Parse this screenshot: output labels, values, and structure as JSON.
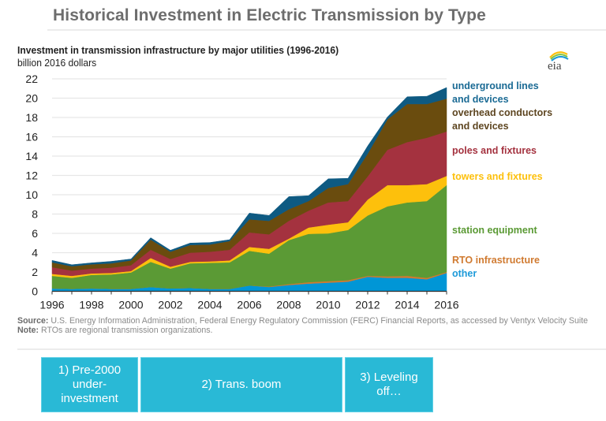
{
  "page": {
    "title": "Historical Investment in Electric Transmission by Type"
  },
  "logo": {
    "text": "eia",
    "icon": "eia-logo-icon"
  },
  "chart_data": {
    "type": "area",
    "stacked": true,
    "title": "Investment in transmission infrastructure by major utilities (1996-2016)",
    "ylabel": "billion 2016 dollars",
    "xlabel": "",
    "ylim": [
      0,
      22
    ],
    "yticks": [
      0,
      2,
      4,
      6,
      8,
      10,
      12,
      14,
      16,
      18,
      20,
      22
    ],
    "xlim": [
      1996,
      2016
    ],
    "xticks": [
      1996,
      1998,
      2000,
      2002,
      2004,
      2006,
      2008,
      2010,
      2012,
      2014,
      2016
    ],
    "grid": true,
    "legend": "right (labels beside series)",
    "x": [
      1996,
      1997,
      1998,
      1999,
      2000,
      2001,
      2002,
      2003,
      2004,
      2005,
      2006,
      2007,
      2008,
      2009,
      2010,
      2011,
      2012,
      2013,
      2014,
      2015,
      2016
    ],
    "series": [
      {
        "name": "other",
        "color": "#0096d6",
        "values": [
          0.3,
          0.25,
          0.3,
          0.25,
          0.25,
          0.45,
          0.3,
          0.35,
          0.25,
          0.25,
          0.6,
          0.45,
          0.65,
          0.8,
          0.9,
          1.0,
          1.5,
          1.4,
          1.4,
          1.25,
          1.9
        ]
      },
      {
        "name": "RTO infrastructure",
        "color": "#d07a30",
        "values": [
          0,
          0,
          0,
          0,
          0,
          0,
          0,
          0,
          0,
          0,
          0,
          0.05,
          0.1,
          0.15,
          0.15,
          0.15,
          0.1,
          0.15,
          0.2,
          0.15,
          0.1
        ]
      },
      {
        "name": "station equipment",
        "color": "#5b9a35",
        "values": [
          1.3,
          1.15,
          1.4,
          1.5,
          1.7,
          2.6,
          2.05,
          2.55,
          2.7,
          2.75,
          3.6,
          3.4,
          4.55,
          5.0,
          4.95,
          5.2,
          6.25,
          7.25,
          7.6,
          7.95,
          9.0
        ]
      },
      {
        "name": "towers and fixtures",
        "color": "#fdc00c",
        "values": [
          0.2,
          0.2,
          0.15,
          0.15,
          0.15,
          0.4,
          0.2,
          0.15,
          0.15,
          0.2,
          0.4,
          0.5,
          0.15,
          0.65,
          0.9,
          0.8,
          1.65,
          2.2,
          1.8,
          1.75,
          0.95
        ]
      },
      {
        "name": "poles and fixtures",
        "color": "#a4323f",
        "values": [
          0.7,
          0.55,
          0.5,
          0.55,
          0.6,
          0.85,
          0.8,
          0.95,
          1.0,
          1.1,
          1.5,
          1.5,
          1.85,
          1.75,
          2.3,
          2.2,
          2.4,
          3.65,
          4.45,
          4.8,
          4.6
        ]
      },
      {
        "name": "overhead conductors and devices",
        "color": "#6a4c0e",
        "values": [
          0.5,
          0.45,
          0.45,
          0.45,
          0.5,
          1.05,
          0.75,
          0.8,
          0.75,
          0.9,
          1.35,
          1.4,
          1.2,
          1.0,
          1.5,
          1.75,
          2.35,
          3.15,
          3.95,
          3.5,
          3.4
        ]
      },
      {
        "name": "underground lines and devices",
        "color": "#0e5a82",
        "values": [
          0.2,
          0.15,
          0.15,
          0.2,
          0.15,
          0.2,
          0.15,
          0.2,
          0.2,
          0.15,
          0.65,
          0.55,
          1.3,
          0.55,
          0.95,
          0.6,
          0.8,
          0.25,
          0.75,
          0.8,
          1.15
        ]
      }
    ],
    "legend_labels": [
      {
        "lines": [
          "underground lines",
          "and devices"
        ],
        "color": "#1a6a94"
      },
      {
        "lines": [
          "overhead conductors",
          "and devices"
        ],
        "color": "#5e4621"
      },
      {
        "lines": [
          "poles and fixtures"
        ],
        "color": "#a4323f"
      },
      {
        "lines": [
          "towers and fixtures"
        ],
        "color": "#fdc00c"
      },
      {
        "lines": [
          "station equipment"
        ],
        "color": "#5b9a35"
      },
      {
        "lines": [
          "RTO infrastructure"
        ],
        "color": "#d07a30"
      },
      {
        "lines": [
          "other"
        ],
        "color": "#1d9ad9"
      }
    ],
    "source_label": "Source:",
    "source_text": " U.S. Energy Information Administration, Federal Energy Regulatory Commission (FERC) Financial Reports, as accessed by Ventyx Velocity Suite",
    "note_label": "Note:",
    "note_text": " RTOs are regional transmission organizations."
  },
  "phases": [
    {
      "label": "1) Pre-2000 under-investment",
      "lines": [
        "1) Pre-2000",
        "under-",
        "investment"
      ]
    },
    {
      "label": "2) Trans. boom",
      "lines": [
        "2) Trans. boom"
      ]
    },
    {
      "label": "3) Leveling off...",
      "lines": [
        "3) Leveling",
        "off…"
      ]
    }
  ],
  "colors": {
    "phase_box": "#29b9d6",
    "title": "#6d6d6d"
  }
}
